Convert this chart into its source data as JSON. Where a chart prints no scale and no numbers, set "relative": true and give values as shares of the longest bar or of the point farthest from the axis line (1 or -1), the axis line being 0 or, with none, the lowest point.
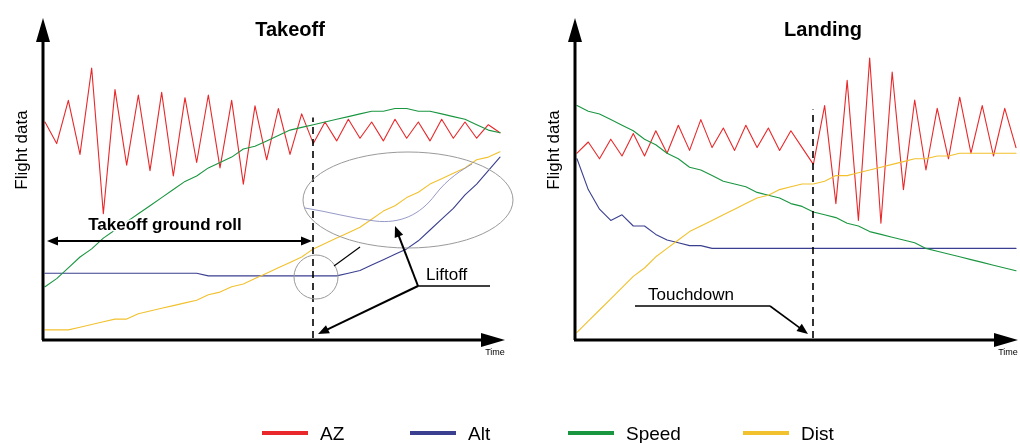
{
  "chart_data": [
    {
      "type": "line",
      "title": "Takeoff",
      "xlabel": "Time",
      "ylabel": "Flight data",
      "relative": true,
      "legend": "bottom",
      "line_style": "solid",
      "marker": "none",
      "categories": [
        null,
        null,
        null,
        null,
        null,
        null,
        null,
        null,
        null,
        null,
        null,
        null,
        null,
        null,
        null,
        null,
        null,
        null,
        null,
        null,
        null,
        null,
        null,
        null,
        null,
        null,
        null,
        null,
        null,
        null,
        null,
        null,
        null,
        null,
        null,
        null,
        null,
        null,
        null,
        null
      ],
      "series": [
        {
          "name": "AZ",
          "color": "#e8282a",
          "values": [
            0.8,
            0.72,
            0.88,
            0.68,
            1.0,
            0.46,
            0.92,
            0.64,
            0.9,
            0.62,
            0.91,
            0.6,
            0.89,
            0.65,
            0.9,
            0.63,
            0.88,
            0.57,
            0.86,
            0.66,
            0.85,
            0.68,
            0.83,
            0.72,
            0.8,
            0.73,
            0.81,
            0.74,
            0.8,
            0.73,
            0.81,
            0.74,
            0.8,
            0.73,
            0.81,
            0.74,
            0.8,
            0.74,
            0.79,
            0.76
          ]
        },
        {
          "name": "Alt",
          "color": "#3a3f8f",
          "values": [
            0.24,
            0.24,
            0.24,
            0.24,
            0.24,
            0.24,
            0.24,
            0.24,
            0.24,
            0.24,
            0.24,
            0.24,
            0.24,
            0.24,
            0.23,
            0.23,
            0.23,
            0.23,
            0.23,
            0.23,
            0.23,
            0.23,
            0.23,
            0.23,
            0.23,
            0.23,
            0.24,
            0.25,
            0.27,
            0.29,
            0.31,
            0.33,
            0.36,
            0.4,
            0.44,
            0.48,
            0.53,
            0.57,
            0.62,
            0.67
          ]
        },
        {
          "name": "Speed",
          "color": "#1a9641",
          "values": [
            0.19,
            0.22,
            0.26,
            0.3,
            0.33,
            0.37,
            0.4,
            0.43,
            0.46,
            0.49,
            0.52,
            0.55,
            0.58,
            0.6,
            0.63,
            0.65,
            0.67,
            0.7,
            0.71,
            0.73,
            0.75,
            0.77,
            0.78,
            0.79,
            0.8,
            0.81,
            0.82,
            0.83,
            0.84,
            0.84,
            0.85,
            0.85,
            0.84,
            0.84,
            0.83,
            0.82,
            0.81,
            0.79,
            0.77,
            0.76
          ]
        },
        {
          "name": "Dist",
          "color": "#f2c12e",
          "values": [
            0.03,
            0.03,
            0.03,
            0.04,
            0.05,
            0.06,
            0.07,
            0.07,
            0.09,
            0.1,
            0.11,
            0.12,
            0.13,
            0.14,
            0.16,
            0.17,
            0.19,
            0.2,
            0.22,
            0.24,
            0.26,
            0.28,
            0.3,
            0.33,
            0.35,
            0.37,
            0.39,
            0.41,
            0.44,
            0.47,
            0.49,
            0.52,
            0.54,
            0.57,
            0.59,
            0.61,
            0.63,
            0.66,
            0.67,
            0.69
          ]
        }
      ],
      "annotations": [
        "Takeoff ground roll",
        "Liftoff"
      ]
    },
    {
      "type": "line",
      "title": "Landing",
      "xlabel": "Time",
      "ylabel": "Flight data",
      "relative": true,
      "line_style": "solid",
      "marker": "none",
      "categories": [
        null,
        null,
        null,
        null,
        null,
        null,
        null,
        null,
        null,
        null,
        null,
        null,
        null,
        null,
        null,
        null,
        null,
        null,
        null,
        null,
        null,
        null,
        null,
        null,
        null,
        null,
        null,
        null,
        null,
        null,
        null,
        null,
        null,
        null,
        null,
        null,
        null,
        null,
        null,
        null
      ],
      "series": [
        {
          "color": "#e8282a",
          "values": [
            0.66,
            0.7,
            0.64,
            0.71,
            0.65,
            0.73,
            0.65,
            0.74,
            0.66,
            0.76,
            0.67,
            0.78,
            0.68,
            0.75,
            0.67,
            0.76,
            0.68,
            0.75,
            0.67,
            0.74,
            0.68,
            0.62,
            0.83,
            0.48,
            0.92,
            0.42,
            1.0,
            0.41,
            0.95,
            0.53,
            0.85,
            0.6,
            0.82,
            0.64,
            0.86,
            0.66,
            0.83,
            0.65,
            0.82,
            0.68
          ]
        },
        {
          "color": "#3a3f8f",
          "values": [
            0.64,
            0.53,
            0.46,
            0.42,
            0.44,
            0.4,
            0.4,
            0.37,
            0.35,
            0.34,
            0.33,
            0.33,
            0.32,
            0.32,
            0.32,
            0.32,
            0.32,
            0.32,
            0.32,
            0.32,
            0.32,
            0.32,
            0.32,
            0.32,
            0.32,
            0.32,
            0.32,
            0.32,
            0.32,
            0.32,
            0.32,
            0.32,
            0.32,
            0.32,
            0.32,
            0.32,
            0.32,
            0.32,
            0.32,
            0.32
          ]
        },
        {
          "color": "#1a9641",
          "values": [
            0.83,
            0.81,
            0.8,
            0.78,
            0.76,
            0.74,
            0.71,
            0.69,
            0.66,
            0.64,
            0.61,
            0.6,
            0.58,
            0.56,
            0.55,
            0.54,
            0.52,
            0.51,
            0.5,
            0.48,
            0.47,
            0.45,
            0.44,
            0.43,
            0.41,
            0.4,
            0.38,
            0.37,
            0.36,
            0.35,
            0.34,
            0.32,
            0.31,
            0.3,
            0.29,
            0.28,
            0.27,
            0.26,
            0.25,
            0.24
          ]
        },
        {
          "color": "#f2c12e",
          "values": [
            0.02,
            0.06,
            0.1,
            0.14,
            0.18,
            0.22,
            0.25,
            0.29,
            0.32,
            0.35,
            0.38,
            0.4,
            0.42,
            0.44,
            0.46,
            0.48,
            0.5,
            0.51,
            0.53,
            0.54,
            0.55,
            0.55,
            0.56,
            0.58,
            0.58,
            0.59,
            0.6,
            0.61,
            0.62,
            0.63,
            0.64,
            0.64,
            0.65,
            0.65,
            0.66,
            0.66,
            0.66,
            0.66,
            0.66,
            0.66
          ]
        }
      ],
      "annotations": [
        "Touchdown"
      ]
    }
  ]
}
